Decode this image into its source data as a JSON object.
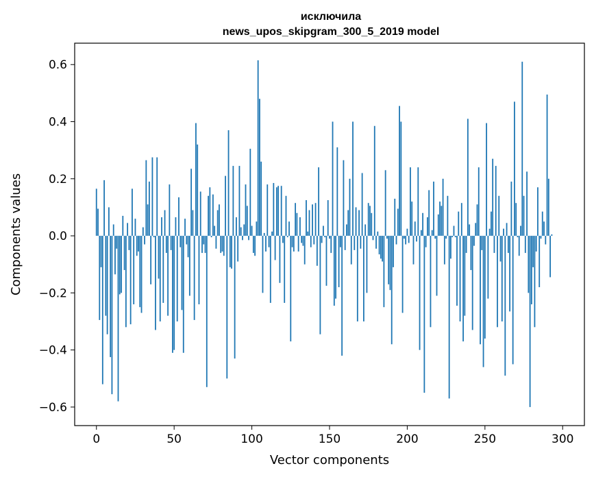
{
  "chart_data": {
    "type": "bar",
    "title_line1": "исключила",
    "title_line2": "news_upos_skipgram_300_5_2019 model",
    "xlabel": "Vector components",
    "ylabel": "Components values",
    "xlim": [
      -14,
      314
    ],
    "ylim": [
      -0.665,
      0.675
    ],
    "x_ticks": [
      0,
      50,
      100,
      150,
      200,
      250,
      300
    ],
    "y_ticks": [
      -0.6,
      -0.4,
      -0.2,
      0.0,
      0.2,
      0.4,
      0.6
    ],
    "x_tick_labels": [
      "0",
      "50",
      "100",
      "150",
      "200",
      "250",
      "300"
    ],
    "y_tick_labels": [
      "−0.6",
      "−0.4",
      "−0.2",
      "0.0",
      "0.2",
      "0.4",
      "0.6"
    ],
    "bar_color": "#1f77b4",
    "grid": false,
    "values": [
      0.165,
      0.095,
      -0.295,
      -0.11,
      -0.52,
      0.195,
      -0.28,
      -0.345,
      0.1,
      -0.425,
      -0.555,
      0.04,
      -0.135,
      -0.045,
      -0.58,
      -0.205,
      -0.2,
      0.07,
      -0.12,
      -0.32,
      0.045,
      -0.05,
      -0.31,
      0.165,
      -0.24,
      0.06,
      -0.07,
      -0.055,
      -0.25,
      -0.27,
      0.03,
      -0.03,
      0.265,
      0.11,
      0.19,
      -0.17,
      0.275,
      -0.005,
      -0.33,
      0.275,
      -0.15,
      -0.3,
      0.065,
      -0.235,
      0.09,
      -0.06,
      -0.28,
      0.18,
      -0.05,
      -0.41,
      -0.4,
      0.065,
      -0.3,
      0.135,
      -0.04,
      -0.26,
      -0.41,
      0.06,
      -0.03,
      -0.075,
      -0.21,
      0.235,
      0.09,
      -0.295,
      0.395,
      0.32,
      -0.24,
      0.155,
      -0.06,
      -0.03,
      -0.06,
      -0.53,
      0.14,
      0.17,
      -0.005,
      0.145,
      0.035,
      -0.045,
      0.09,
      0.11,
      -0.06,
      -0.055,
      -0.07,
      0.21,
      -0.5,
      0.37,
      -0.11,
      -0.115,
      0.245,
      -0.43,
      0.065,
      -0.09,
      0.245,
      0.03,
      -0.015,
      0.04,
      0.18,
      0.105,
      -0.015,
      0.305,
      0.035,
      -0.06,
      -0.07,
      0.05,
      0.615,
      0.48,
      0.26,
      -0.2,
      0.01,
      -0.055,
      0.18,
      -0.04,
      -0.235,
      0.015,
      0.185,
      -0.085,
      0.17,
      0.175,
      -0.165,
      0.175,
      -0.025,
      -0.235,
      0.14,
      -0.005,
      0.05,
      -0.37,
      -0.04,
      -0.055,
      0.115,
      0.08,
      -0.055,
      0.065,
      -0.025,
      -0.035,
      -0.1,
      0.125,
      0.015,
      0.09,
      -0.04,
      0.11,
      -0.03,
      0.115,
      -0.105,
      0.24,
      -0.345,
      -0.025,
      0.035,
      -0.005,
      -0.175,
      0.125,
      -0.01,
      -0.06,
      0.4,
      -0.245,
      -0.22,
      0.31,
      -0.18,
      -0.04,
      -0.42,
      0.265,
      -0.05,
      0.04,
      0.09,
      0.2,
      -0.1,
      0.4,
      -0.05,
      0.1,
      -0.3,
      0.09,
      -0.045,
      0.22,
      -0.3,
      0.04,
      -0.2,
      0.115,
      0.105,
      0.08,
      -0.015,
      0.385,
      -0.045,
      0.015,
      -0.065,
      -0.08,
      -0.09,
      -0.25,
      0.23,
      -0.01,
      -0.17,
      -0.19,
      -0.38,
      -0.11,
      0.13,
      -0.03,
      0.095,
      0.455,
      0.4,
      -0.27,
      -0.01,
      -0.03,
      0.025,
      -0.025,
      0.24,
      0.12,
      -0.1,
      0.05,
      -0.02,
      0.24,
      -0.4,
      0.02,
      0.08,
      -0.55,
      -0.04,
      0.065,
      0.16,
      -0.32,
      0.02,
      0.19,
      -0.01,
      -0.21,
      0.075,
      0.12,
      0.105,
      0.2,
      -0.1,
      -0.01,
      0.14,
      -0.57,
      -0.08,
      -0.005,
      0.035,
      -0.005,
      -0.245,
      0.085,
      -0.3,
      0.115,
      -0.37,
      -0.28,
      -0.06,
      0.41,
      0.04,
      -0.12,
      -0.33,
      -0.035,
      0.045,
      0.11,
      0.24,
      -0.38,
      -0.05,
      -0.46,
      -0.36,
      0.395,
      -0.22,
      0.025,
      0.085,
      0.27,
      -0.06,
      0.245,
      -0.32,
      0.14,
      -0.09,
      -0.3,
      0.025,
      -0.49,
      0.045,
      -0.06,
      -0.265,
      0.19,
      -0.45,
      0.47,
      0.115,
      -0.005,
      -0.07,
      0.035,
      0.61,
      0.14,
      -0.06,
      0.225,
      -0.2,
      -0.6,
      -0.24,
      -0.11,
      -0.32,
      -0.055,
      0.17,
      -0.18,
      -0.01,
      0.085,
      0.05,
      -0.03,
      0.495,
      0.2,
      -0.145,
      0.005
    ]
  }
}
